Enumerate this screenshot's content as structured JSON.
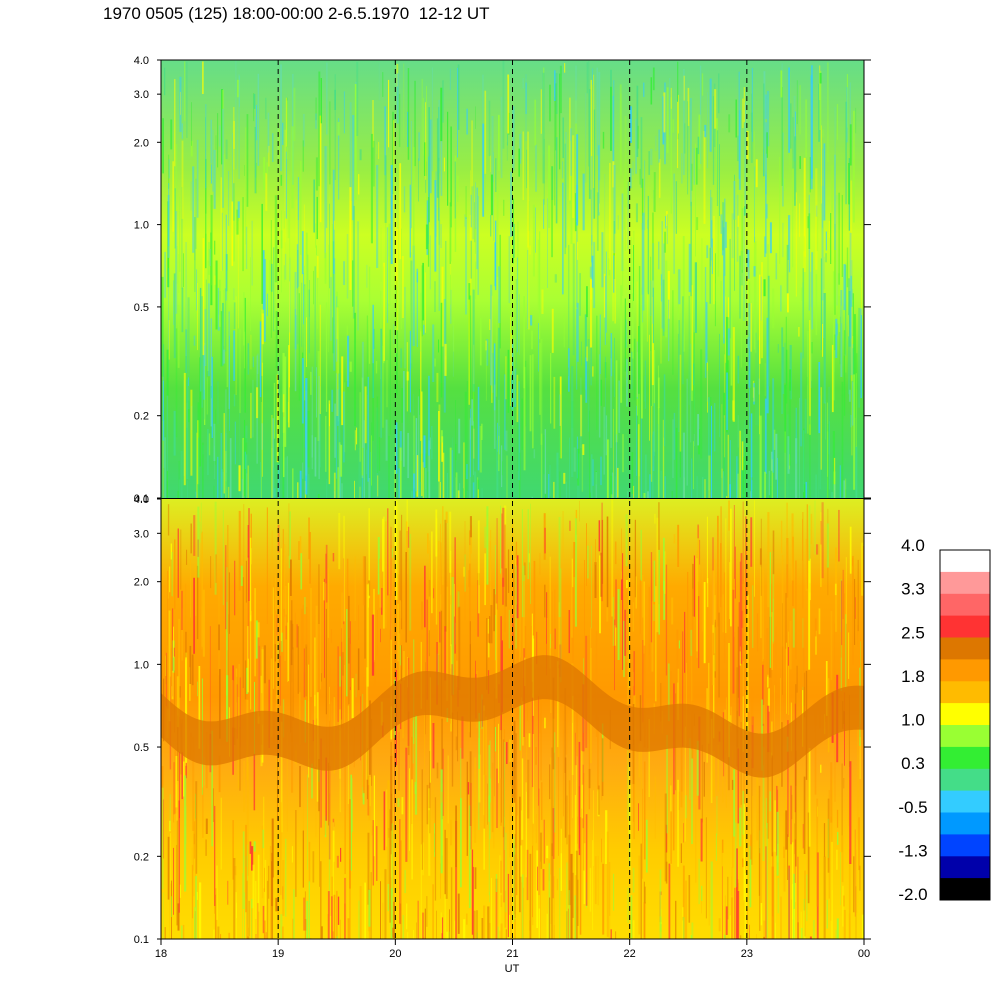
{
  "title": "1970 0505 (125) 18:00-00:00 2-6.5.1970  12-12 UT",
  "chart_data": [
    {
      "type": "heatmap",
      "panel": "top",
      "ylabel": "",
      "yscale": "log",
      "ylim": [
        0.1,
        4.0
      ],
      "y_ticks": [
        "4.0",
        "3.0",
        "2.0",
        "1.0",
        "0.5",
        "0.2",
        "0.1"
      ],
      "y_tick_values": [
        4.0,
        3.0,
        2.0,
        1.0,
        0.5,
        0.2,
        0.1
      ],
      "xlim": [
        18,
        24
      ],
      "dominant_levels": [
        "0.3",
        "1.0",
        "-0.5"
      ]
    },
    {
      "type": "heatmap",
      "panel": "bottom",
      "ylabel": "",
      "yscale": "log",
      "ylim": [
        0.1,
        4.0
      ],
      "y_ticks": [
        "4.0",
        "3.0",
        "2.0",
        "1.0",
        "0.5",
        "0.2",
        "0.1"
      ],
      "y_tick_values": [
        4.0,
        3.0,
        2.0,
        1.0,
        0.5,
        0.2,
        0.1
      ],
      "xlim": [
        18,
        24
      ],
      "xlabel": "UT",
      "x_ticks": [
        "18",
        "19",
        "20",
        "21",
        "22",
        "23",
        "00"
      ],
      "x_tick_values": [
        18,
        19,
        20,
        21,
        22,
        23,
        24
      ],
      "dominant_levels": [
        "1.0",
        "1.8",
        "2.5"
      ]
    }
  ],
  "grid": {
    "dashed_vertical_hours": [
      19,
      20,
      21,
      22,
      23
    ]
  },
  "colorbar": {
    "labels": [
      "4.0",
      "3.3",
      "2.5",
      "1.8",
      "1.0",
      "0.3",
      "-0.5",
      "-1.3",
      "-2.0"
    ],
    "colors": [
      "#ffffff",
      "#ff9999",
      "#ff6666",
      "#ff3333",
      "#dd7700",
      "#ff9900",
      "#ffbb00",
      "#ffff00",
      "#99ff33",
      "#33ee33",
      "#44dd88",
      "#33ccff",
      "#0099ff",
      "#0044ff",
      "#0000aa",
      "#000000"
    ]
  }
}
